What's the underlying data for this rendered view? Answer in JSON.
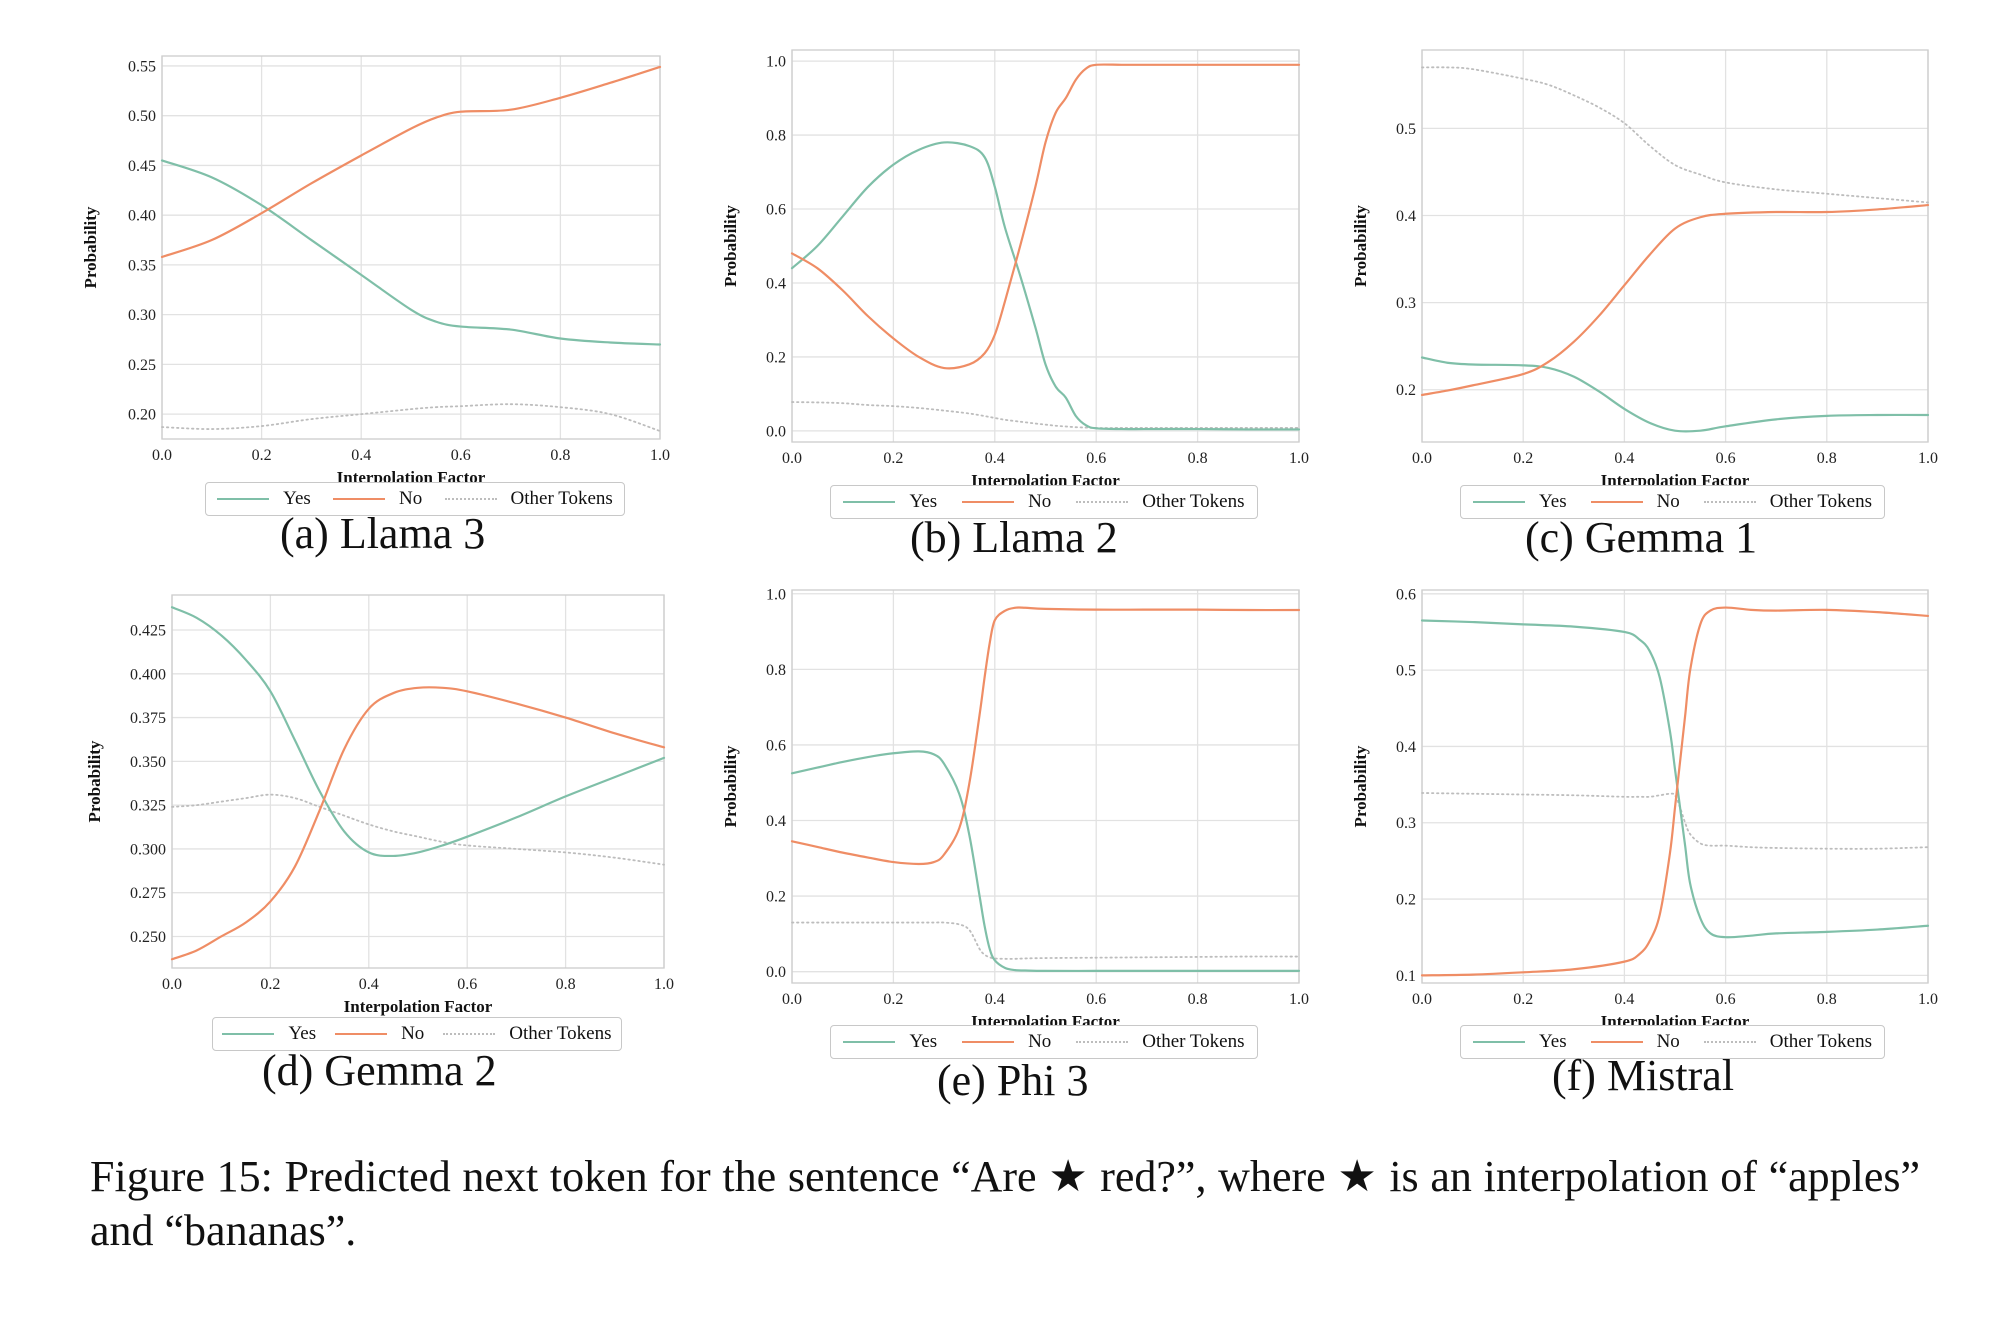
{
  "chart_data": [
    {
      "type": "line",
      "id": "a",
      "subcaption": "(a) Llama 3",
      "xlabel": "Interpolation Factor",
      "ylabel": "Probability",
      "xlim": [
        0,
        1
      ],
      "ylim": [
        0.175,
        0.56
      ],
      "xticks": [
        "0.0",
        "0.2",
        "0.4",
        "0.6",
        "0.8",
        "1.0"
      ],
      "yticks": [
        "0.20",
        "0.25",
        "0.30",
        "0.35",
        "0.40",
        "0.45",
        "0.50",
        "0.55"
      ],
      "x": [
        0.0,
        0.1,
        0.2,
        0.3,
        0.4,
        0.5,
        0.55,
        0.6,
        0.7,
        0.8,
        0.9,
        1.0
      ],
      "series": [
        {
          "name": "Yes",
          "values": [
            0.455,
            0.438,
            0.41,
            0.375,
            0.34,
            0.305,
            0.293,
            0.288,
            0.285,
            0.276,
            0.272,
            0.27
          ]
        },
        {
          "name": "No",
          "values": [
            0.358,
            0.375,
            0.402,
            0.432,
            0.46,
            0.487,
            0.498,
            0.504,
            0.506,
            0.518,
            0.533,
            0.549
          ]
        },
        {
          "name": "Other Tokens",
          "values": [
            0.187,
            0.185,
            0.188,
            0.195,
            0.2,
            0.205,
            0.207,
            0.208,
            0.21,
            0.207,
            0.2,
            0.183
          ]
        }
      ],
      "legend": [
        "Yes",
        "No",
        "Other Tokens"
      ]
    },
    {
      "type": "line",
      "id": "b",
      "subcaption": "(b) Llama 2",
      "xlabel": "Interpolation Factor",
      "ylabel": "Probability",
      "xlim": [
        0,
        1
      ],
      "ylim": [
        -0.03,
        1.03
      ],
      "xticks": [
        "0.0",
        "0.2",
        "0.4",
        "0.6",
        "0.8",
        "1.0"
      ],
      "yticks": [
        "0.0",
        "0.2",
        "0.4",
        "0.6",
        "0.8",
        "1.0"
      ],
      "x": [
        0.0,
        0.05,
        0.1,
        0.15,
        0.2,
        0.25,
        0.3,
        0.35,
        0.38,
        0.4,
        0.42,
        0.45,
        0.48,
        0.5,
        0.52,
        0.54,
        0.56,
        0.58,
        0.6,
        0.65,
        0.7,
        0.8,
        0.9,
        1.0
      ],
      "series": [
        {
          "name": "Yes",
          "values": [
            0.44,
            0.5,
            0.58,
            0.66,
            0.72,
            0.76,
            0.78,
            0.77,
            0.74,
            0.66,
            0.55,
            0.42,
            0.28,
            0.18,
            0.12,
            0.09,
            0.04,
            0.015,
            0.007,
            0.005,
            0.005,
            0.005,
            0.004,
            0.004
          ]
        },
        {
          "name": "No",
          "values": [
            0.48,
            0.44,
            0.38,
            0.31,
            0.25,
            0.2,
            0.17,
            0.18,
            0.21,
            0.26,
            0.35,
            0.5,
            0.66,
            0.78,
            0.86,
            0.9,
            0.95,
            0.98,
            0.99,
            0.99,
            0.99,
            0.99,
            0.99,
            0.99
          ]
        },
        {
          "name": "Other Tokens",
          "values": [
            0.078,
            0.077,
            0.075,
            0.07,
            0.067,
            0.062,
            0.055,
            0.047,
            0.04,
            0.035,
            0.03,
            0.025,
            0.02,
            0.017,
            0.014,
            0.012,
            0.01,
            0.009,
            0.008,
            0.008,
            0.008,
            0.008,
            0.008,
            0.008
          ]
        }
      ],
      "legend": [
        "Yes",
        "No",
        "Other Tokens"
      ]
    },
    {
      "type": "line",
      "id": "c",
      "subcaption": "(c) Gemma 1",
      "xlabel": "Interpolation Factor",
      "ylabel": "Probability",
      "xlim": [
        0,
        1
      ],
      "ylim": [
        0.14,
        0.59
      ],
      "xticks": [
        "0.0",
        "0.2",
        "0.4",
        "0.6",
        "0.8",
        "1.0"
      ],
      "yticks": [
        "0.2",
        "0.3",
        "0.4",
        "0.5"
      ],
      "x": [
        0.0,
        0.05,
        0.1,
        0.2,
        0.25,
        0.3,
        0.35,
        0.4,
        0.45,
        0.5,
        0.55,
        0.6,
        0.7,
        0.8,
        0.9,
        1.0
      ],
      "series": [
        {
          "name": "Yes",
          "values": [
            0.237,
            0.231,
            0.229,
            0.228,
            0.225,
            0.215,
            0.198,
            0.178,
            0.162,
            0.153,
            0.153,
            0.158,
            0.166,
            0.17,
            0.171,
            0.171
          ]
        },
        {
          "name": "No",
          "values": [
            0.194,
            0.199,
            0.205,
            0.218,
            0.232,
            0.255,
            0.285,
            0.32,
            0.355,
            0.385,
            0.398,
            0.402,
            0.404,
            0.404,
            0.407,
            0.412
          ]
        },
        {
          "name": "Other Tokens",
          "values": [
            0.57,
            0.57,
            0.568,
            0.557,
            0.55,
            0.538,
            0.524,
            0.506,
            0.48,
            0.458,
            0.447,
            0.438,
            0.43,
            0.425,
            0.42,
            0.415
          ]
        }
      ],
      "legend": [
        "Yes",
        "No",
        "Other Tokens"
      ]
    },
    {
      "type": "line",
      "id": "d",
      "subcaption": "(d) Gemma 2",
      "xlabel": "Interpolation Factor",
      "ylabel": "Probability",
      "xlim": [
        0,
        1
      ],
      "ylim": [
        0.232,
        0.445
      ],
      "xticks": [
        "0.0",
        "0.2",
        "0.4",
        "0.6",
        "0.8",
        "1.0"
      ],
      "yticks": [
        "0.250",
        "0.275",
        "0.300",
        "0.325",
        "0.350",
        "0.375",
        "0.400",
        "0.425"
      ],
      "x": [
        0.0,
        0.05,
        0.1,
        0.15,
        0.2,
        0.25,
        0.3,
        0.35,
        0.4,
        0.45,
        0.5,
        0.55,
        0.6,
        0.7,
        0.8,
        0.9,
        1.0
      ],
      "series": [
        {
          "name": "Yes",
          "values": [
            0.438,
            0.432,
            0.422,
            0.408,
            0.39,
            0.362,
            0.333,
            0.31,
            0.298,
            0.296,
            0.298,
            0.302,
            0.307,
            0.318,
            0.33,
            0.341,
            0.352
          ]
        },
        {
          "name": "No",
          "values": [
            0.237,
            0.242,
            0.25,
            0.258,
            0.27,
            0.29,
            0.322,
            0.357,
            0.38,
            0.389,
            0.392,
            0.392,
            0.39,
            0.383,
            0.375,
            0.366,
            0.358
          ]
        },
        {
          "name": "Other Tokens",
          "values": [
            0.324,
            0.325,
            0.327,
            0.329,
            0.331,
            0.329,
            0.324,
            0.319,
            0.314,
            0.31,
            0.307,
            0.304,
            0.302,
            0.3,
            0.298,
            0.295,
            0.291
          ]
        }
      ],
      "legend": [
        "Yes",
        "No",
        "Other Tokens"
      ]
    },
    {
      "type": "line",
      "id": "e",
      "subcaption": "(e) Phi 3",
      "xlabel": "Interpolation Factor",
      "ylabel": "Probability",
      "xlim": [
        0,
        1
      ],
      "ylim": [
        -0.03,
        1.01
      ],
      "xticks": [
        "0.0",
        "0.2",
        "0.4",
        "0.6",
        "0.8",
        "1.0"
      ],
      "yticks": [
        "0.0",
        "0.2",
        "0.4",
        "0.6",
        "0.8",
        "1.0"
      ],
      "x": [
        0.0,
        0.05,
        0.1,
        0.15,
        0.2,
        0.25,
        0.28,
        0.3,
        0.33,
        0.35,
        0.37,
        0.38,
        0.39,
        0.4,
        0.42,
        0.44,
        0.46,
        0.5,
        0.6,
        0.7,
        0.8,
        0.9,
        1.0
      ],
      "series": [
        {
          "name": "Yes",
          "values": [
            0.525,
            0.54,
            0.555,
            0.568,
            0.578,
            0.583,
            0.575,
            0.55,
            0.47,
            0.36,
            0.2,
            0.12,
            0.06,
            0.03,
            0.01,
            0.004,
            0.003,
            0.002,
            0.002,
            0.002,
            0.002,
            0.002,
            0.002
          ]
        },
        {
          "name": "No",
          "values": [
            0.345,
            0.33,
            0.315,
            0.302,
            0.29,
            0.285,
            0.29,
            0.31,
            0.38,
            0.5,
            0.68,
            0.78,
            0.87,
            0.93,
            0.955,
            0.963,
            0.963,
            0.96,
            0.958,
            0.958,
            0.958,
            0.957,
            0.957
          ]
        },
        {
          "name": "Other Tokens",
          "values": [
            0.13,
            0.13,
            0.13,
            0.13,
            0.13,
            0.13,
            0.13,
            0.13,
            0.125,
            0.11,
            0.06,
            0.045,
            0.038,
            0.035,
            0.034,
            0.034,
            0.035,
            0.036,
            0.037,
            0.038,
            0.039,
            0.04,
            0.04
          ]
        }
      ],
      "legend": [
        "Yes",
        "No",
        "Other Tokens"
      ]
    },
    {
      "type": "line",
      "id": "f",
      "subcaption": "(f) Mistral",
      "xlabel": "Interpolation Factor",
      "ylabel": "Probability",
      "xlim": [
        0,
        1
      ],
      "ylim": [
        0.09,
        0.605
      ],
      "xticks": [
        "0.0",
        "0.2",
        "0.4",
        "0.6",
        "0.8",
        "1.0"
      ],
      "yticks": [
        "0.1",
        "0.2",
        "0.3",
        "0.4",
        "0.5",
        "0.6"
      ],
      "x": [
        0.0,
        0.1,
        0.2,
        0.3,
        0.4,
        0.43,
        0.45,
        0.47,
        0.49,
        0.5,
        0.51,
        0.52,
        0.53,
        0.55,
        0.57,
        0.6,
        0.65,
        0.7,
        0.8,
        0.9,
        1.0
      ],
      "series": [
        {
          "name": "Yes",
          "values": [
            0.565,
            0.563,
            0.56,
            0.557,
            0.55,
            0.54,
            0.525,
            0.49,
            0.42,
            0.37,
            0.32,
            0.27,
            0.22,
            0.175,
            0.155,
            0.15,
            0.152,
            0.155,
            0.157,
            0.16,
            0.165
          ]
        },
        {
          "name": "No",
          "values": [
            0.1,
            0.101,
            0.104,
            0.108,
            0.118,
            0.128,
            0.145,
            0.18,
            0.26,
            0.32,
            0.38,
            0.44,
            0.5,
            0.56,
            0.578,
            0.582,
            0.579,
            0.578,
            0.579,
            0.576,
            0.571
          ]
        },
        {
          "name": "Other Tokens",
          "values": [
            0.339,
            0.338,
            0.337,
            0.336,
            0.334,
            0.334,
            0.334,
            0.336,
            0.338,
            0.336,
            0.32,
            0.3,
            0.285,
            0.273,
            0.27,
            0.27,
            0.268,
            0.267,
            0.266,
            0.266,
            0.268
          ]
        }
      ],
      "legend": [
        "Yes",
        "No",
        "Other Tokens"
      ]
    }
  ],
  "colors": {
    "Yes": "#7fbfa8",
    "No": "#ef8d65",
    "Other Tokens": "#bdbdbd",
    "grid": "#e2e2e2",
    "spine": "#cfcfcf"
  },
  "caption": {
    "prefix": "Figure 15:  Predicted next token for the sentence “Are",
    "star": "★",
    "middle": "red?”, where",
    "suffix": "is an interpolation of “apples” and “bananas”."
  }
}
